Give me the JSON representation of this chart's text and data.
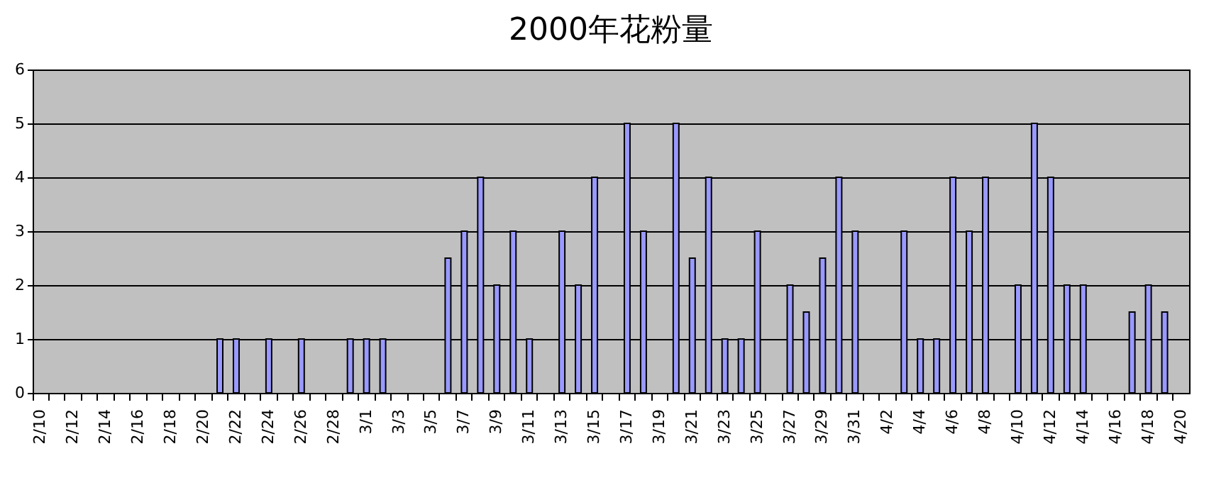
{
  "chart_data": {
    "type": "bar",
    "title": "2000年花粉量",
    "categories": [
      "2/10",
      null,
      "2/12",
      null,
      "2/14",
      null,
      "2/16",
      null,
      "2/18",
      null,
      "2/20",
      null,
      "2/22",
      null,
      "2/24",
      null,
      "2/26",
      null,
      "2/28",
      null,
      "3/1",
      null,
      "3/3",
      null,
      "3/5",
      null,
      "3/7",
      null,
      "3/9",
      null,
      "3/11",
      null,
      "3/13",
      null,
      "3/15",
      null,
      "3/17",
      null,
      "3/19",
      null,
      "3/21",
      null,
      "3/23",
      null,
      "3/25",
      null,
      "3/27",
      null,
      "3/29",
      null,
      "3/31",
      null,
      "4/2",
      null,
      "4/4",
      null,
      "4/6",
      null,
      "4/8",
      null,
      "4/10",
      null,
      "4/12",
      null,
      "4/14",
      null,
      "4/16",
      null,
      "4/18",
      null,
      "4/20"
    ],
    "values": [
      null,
      null,
      null,
      null,
      null,
      null,
      null,
      null,
      null,
      null,
      null,
      1,
      1,
      null,
      1,
      null,
      1,
      null,
      null,
      1,
      1,
      1,
      null,
      null,
      null,
      2.5,
      3,
      4,
      2,
      3,
      1,
      null,
      3,
      2,
      4,
      null,
      5,
      3,
      null,
      5,
      2.5,
      4,
      1,
      1,
      3,
      null,
      2,
      1.5,
      2.5,
      4,
      3,
      null,
      null,
      3,
      1,
      1,
      4,
      3,
      4,
      null,
      2,
      5,
      4,
      2,
      2,
      null,
      null,
      1.5,
      2,
      1.5,
      null
    ],
    "color": "#9999ff",
    "ylim": [
      0,
      6
    ],
    "yticks": [
      0,
      1,
      2,
      3,
      4,
      5,
      6
    ],
    "grid": "y"
  }
}
